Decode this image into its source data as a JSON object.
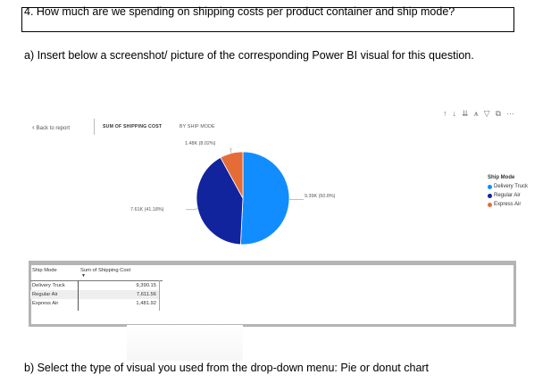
{
  "question": "4.  How much are we spending on shipping costs per product container and ship mode?",
  "part_a": "a)  Insert below a screenshot/ picture of the corresponding Power BI visual for this question.",
  "part_b": "b)  Select the type of visual you used from the drop-down menu:   Pie or donut chart",
  "pbi": {
    "back_label": "Back to report",
    "visual_title": "SUM OF SHIPPING COST",
    "visual_subtitle": "BY SHIP MODE",
    "toolbar_icons": [
      "arrow-up-icon",
      "arrow-down-icon",
      "double-arrow-down-icon",
      "expand-all-icon",
      "filter-icon",
      "focus-mode-icon",
      "more-options-icon"
    ],
    "legend": {
      "title": "Ship Mode",
      "items": [
        "Delivery Truck",
        "Regular Air",
        "Express Air"
      ]
    },
    "table": {
      "headers": [
        "Ship Mode",
        "Sum of Shipping Cost"
      ],
      "rows": [
        [
          "Delivery Truck",
          "9,390.15"
        ],
        [
          "Regular Air",
          "7,611.56"
        ],
        [
          "Express Air",
          "1,481.92"
        ]
      ]
    }
  },
  "chart_data": {
    "type": "pie",
    "categories": [
      "Delivery Truck",
      "Regular Air",
      "Express Air"
    ],
    "values": [
      9390.15,
      7611.56,
      1481.92
    ],
    "data_labels": [
      "9.39K (50.8%)",
      "7.61K (41.18%)",
      "1.48K (8.02%)"
    ],
    "colors": [
      "#118DFF",
      "#12239E",
      "#E66C37"
    ],
    "title": "SUM OF SHIPPING COST",
    "subtitle": "BY SHIP MODE",
    "legend_title": "Ship Mode",
    "legend_position": "right"
  }
}
